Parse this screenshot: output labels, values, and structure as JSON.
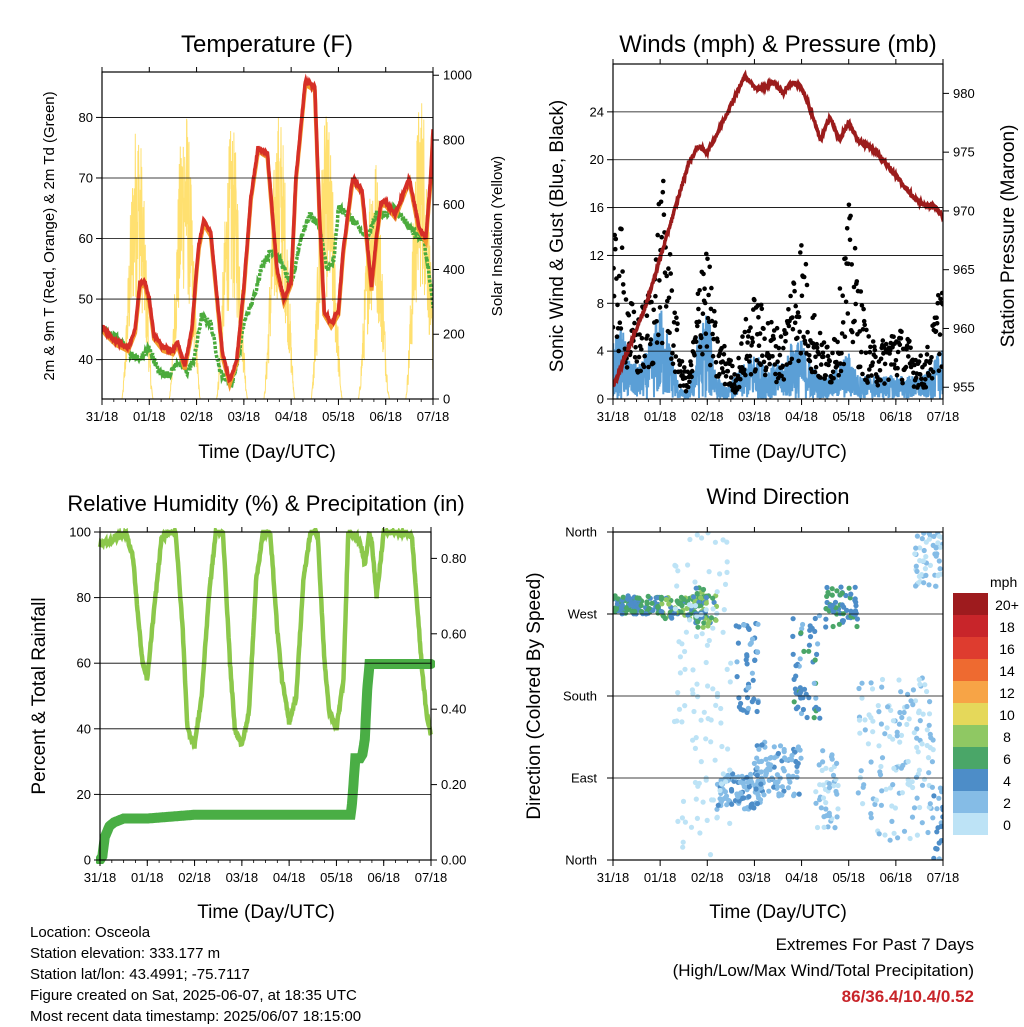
{
  "info": {
    "location": "Location: Osceola",
    "elevation": "Station elevation: 333.177 m",
    "latlon": "Station lat/lon: 43.4991; -75.7117",
    "created": "Figure created on Sat, 2025-06-07, at 18:35 UTC",
    "recent": "Most recent data timestamp: 2025/06/07 18:15:00"
  },
  "extremes": {
    "title": "Extremes For Past 7 Days",
    "subtitle": "(High/Low/Max Wind/Total Precipitation)",
    "values": "86/36.4/10.4/0.52"
  },
  "colors": {
    "temp2m": "#d62f27",
    "temp9m": "#f39a2c",
    "dewpoint": "#4bab3c",
    "solar": "#ffe070",
    "gust": "#000000",
    "wind": "#5b9fd6",
    "pressure": "#9b1c1c",
    "rh": "#8cc84b",
    "precip": "#4aae45"
  },
  "chart_data": [
    {
      "type": "line",
      "title": "Temperature (F)",
      "xlabel": "Time (Day/UTC)",
      "ylabel": "2m & 9m T (Red, Orange) & 2m Td (Green)",
      "y2label": "Solar Insolation (Yellow)",
      "x_ticks": [
        "31/18",
        "01/18",
        "02/18",
        "03/18",
        "04/18",
        "05/18",
        "06/18",
        "07/18"
      ],
      "xlim": [
        0,
        7
      ],
      "ylim": [
        33.5,
        87.5
      ],
      "y_ticks": [
        40,
        50,
        60,
        70,
        80
      ],
      "y2lim": [
        0,
        1010
      ],
      "y2_ticks": [
        0,
        200,
        400,
        600,
        800,
        1000
      ],
      "grid": true,
      "series": [
        {
          "key": "temp2m",
          "x": [
            0,
            0.1,
            0.3,
            0.55,
            0.7,
            0.8,
            0.9,
            1.0,
            1.1,
            1.3,
            1.5,
            1.6,
            1.75,
            1.9,
            2.0,
            2.05,
            2.15,
            2.3,
            2.55,
            2.7,
            2.85,
            3.0,
            3.15,
            3.3,
            3.5,
            3.7,
            3.85,
            4.0,
            4.1,
            4.3,
            4.5,
            4.6,
            4.7,
            4.85,
            5.0,
            5.1,
            5.3,
            5.5,
            5.6,
            5.7,
            5.8,
            5.9,
            6.0,
            6.2,
            6.4,
            6.5,
            6.7,
            6.85,
            6.95,
            7.0
          ],
          "y": [
            45.5,
            44.5,
            43,
            42,
            45,
            52.5,
            53,
            50,
            44,
            42,
            41.5,
            43,
            39,
            45,
            55,
            59,
            63,
            61,
            41,
            36.5,
            40,
            52,
            67,
            75,
            74,
            55,
            50,
            53,
            70,
            86,
            85,
            64,
            48,
            46,
            48,
            58,
            70,
            68,
            60,
            52,
            60,
            66,
            66,
            64,
            68,
            70,
            62,
            60,
            70,
            78
          ]
        },
        {
          "key": "dewpoint",
          "x": [
            0,
            0.2,
            0.4,
            0.6,
            0.8,
            1.0,
            1.2,
            1.4,
            1.6,
            1.8,
            1.95,
            2.1,
            2.3,
            2.5,
            2.6,
            2.75,
            2.9,
            3.0,
            3.2,
            3.4,
            3.6,
            3.8,
            4.0,
            4.2,
            4.4,
            4.6,
            4.75,
            4.9,
            5.0,
            5.2,
            5.4,
            5.6,
            5.8,
            6.0,
            6.2,
            6.4,
            6.6,
            6.8,
            6.9,
            7.0
          ],
          "y": [
            45,
            44,
            43,
            41,
            40,
            42,
            38,
            37.5,
            39.5,
            38,
            40,
            47,
            46,
            38,
            37,
            36,
            41,
            46,
            50,
            56,
            58,
            56,
            52,
            60,
            64,
            62,
            55,
            56,
            65,
            64,
            62,
            60,
            64,
            64,
            65,
            63,
            61,
            60,
            55,
            49
          ]
        }
      ],
      "solar": {
        "day_centers": [
          0.75,
          1.75,
          2.75,
          3.75,
          4.75,
          5.75,
          6.75
        ],
        "peaks": [
          880,
          930,
          850,
          900,
          880,
          780,
          960
        ]
      }
    },
    {
      "type": "scatter",
      "title": "Winds (mph) & Pressure (mb)",
      "xlabel": "Time (Day/UTC)",
      "ylabel": "Sonic Wind & Gust (Blue, Black)",
      "y2label": "Station Pressure (Maroon)",
      "x_ticks": [
        "31/18",
        "01/18",
        "02/18",
        "03/18",
        "04/18",
        "05/18",
        "06/18",
        "07/18"
      ],
      "xlim": [
        0,
        7
      ],
      "ylim": [
        0,
        28
      ],
      "y_ticks": [
        0,
        4,
        8,
        12,
        16,
        20,
        24
      ],
      "y2lim": [
        954,
        982.5
      ],
      "y2_ticks": [
        955,
        960,
        965,
        970,
        975,
        980
      ],
      "grid": true,
      "gust_envelope": {
        "x": [
          0,
          0.15,
          0.3,
          0.5,
          0.7,
          0.9,
          1.0,
          1.1,
          1.3,
          1.45,
          1.6,
          1.75,
          1.9,
          2.0,
          2.2,
          2.4,
          2.6,
          2.8,
          3.0,
          3.2,
          3.4,
          3.6,
          3.8,
          4.0,
          4.2,
          4.4,
          4.6,
          4.8,
          5.0,
          5.2,
          5.4,
          5.6,
          5.8,
          6.0,
          6.2,
          6.4,
          6.6,
          6.8,
          7.0
        ],
        "y": [
          12,
          14,
          9,
          6,
          8,
          11,
          18,
          16,
          8,
          3,
          2,
          6,
          14,
          12,
          5,
          4,
          2,
          6,
          8,
          7,
          6,
          5,
          10,
          13,
          8,
          5,
          4,
          8,
          15,
          10,
          5,
          4,
          5,
          6,
          5,
          4,
          3,
          6,
          11
        ]
      },
      "wind_envelope": {
        "x": [
          0,
          0.2,
          0.4,
          0.6,
          0.8,
          1.0,
          1.2,
          1.4,
          1.6,
          1.8,
          2.0,
          2.2,
          2.4,
          2.6,
          2.8,
          3.0,
          3.2,
          3.4,
          3.6,
          3.8,
          4.0,
          4.2,
          4.4,
          4.6,
          4.8,
          5.0,
          5.2,
          5.4,
          5.6,
          5.8,
          6.0,
          6.2,
          6.4,
          6.6,
          6.8,
          7.0
        ],
        "y": [
          5,
          6,
          3,
          3,
          5,
          8,
          5,
          1,
          0.5,
          5,
          8,
          2,
          1,
          2,
          3,
          4,
          3,
          3,
          3,
          5,
          5,
          3,
          2,
          2,
          3,
          4,
          2,
          2,
          2,
          2,
          2,
          2,
          2,
          2,
          3,
          5
        ]
      },
      "pressure": {
        "x": [
          0,
          0.3,
          0.7,
          1.0,
          1.3,
          1.6,
          1.8,
          2.0,
          2.2,
          2.5,
          2.8,
          3.0,
          3.2,
          3.4,
          3.6,
          3.8,
          4.0,
          4.2,
          4.4,
          4.6,
          4.8,
          5.0,
          5.2,
          5.4,
          5.6,
          5.8,
          6.0,
          6.2,
          6.4,
          6.6,
          6.8,
          7.0
        ],
        "y": [
          955,
          958,
          962,
          966,
          970,
          974,
          975.5,
          975,
          976.5,
          979,
          981.5,
          980.5,
          980.5,
          981,
          980,
          981,
          980.5,
          978.5,
          976,
          978,
          976,
          977.5,
          976,
          975.5,
          975,
          974,
          973,
          972,
          971,
          970.5,
          970.5,
          969.5
        ]
      }
    },
    {
      "type": "line",
      "title": "Relative Humidity (%) & Precipitation (in)",
      "xlabel": "Time (Day/UTC)",
      "ylabel": "Percent & Total Rainfall",
      "x_ticks": [
        "31/18",
        "01/18",
        "02/18",
        "03/18",
        "04/18",
        "05/18",
        "06/18",
        "07/18"
      ],
      "xlim": [
        0,
        7
      ],
      "ylim": [
        0,
        100
      ],
      "y_ticks": [
        0,
        20,
        40,
        60,
        80,
        100
      ],
      "y2lim": [
        0,
        0.87
      ],
      "y2_ticks": [
        "0.00",
        "0.20",
        "0.40",
        "0.60",
        "0.80"
      ],
      "grid": true,
      "series": [
        {
          "key": "rh",
          "name": "",
          "x": [
            0,
            0.2,
            0.4,
            0.55,
            0.7,
            0.8,
            0.9,
            1.0,
            1.1,
            1.3,
            1.5,
            1.6,
            1.75,
            1.85,
            2.0,
            2.15,
            2.3,
            2.45,
            2.6,
            2.75,
            2.85,
            3.0,
            3.15,
            3.3,
            3.45,
            3.6,
            3.75,
            3.85,
            4.0,
            4.15,
            4.3,
            4.45,
            4.6,
            4.75,
            4.85,
            5.0,
            5.15,
            5.25,
            5.4,
            5.5,
            5.6,
            5.7,
            5.75,
            5.85,
            6.0,
            6.2,
            6.4,
            6.5,
            6.6,
            6.8,
            6.9,
            7.0
          ],
          "y": [
            96,
            97,
            99,
            100,
            92,
            75,
            60,
            55,
            70,
            98,
            100,
            100,
            70,
            40,
            35,
            50,
            80,
            100,
            100,
            60,
            40,
            35,
            45,
            85,
            100,
            100,
            70,
            55,
            42,
            50,
            85,
            100,
            100,
            60,
            45,
            40,
            55,
            100,
            99,
            97,
            90,
            100,
            97,
            80,
            100,
            100,
            100,
            100,
            98,
            60,
            45,
            38
          ]
        },
        {
          "key": "precip",
          "name": "",
          "x": [
            0,
            0.05,
            0.1,
            0.2,
            0.3,
            0.5,
            1.0,
            1.5,
            2.0,
            3.0,
            4.0,
            5.0,
            5.3,
            5.33,
            5.4,
            5.5,
            5.55,
            5.6,
            5.65,
            5.7,
            6.0,
            6.5,
            7.0
          ],
          "y": [
            0,
            0.01,
            0.06,
            0.09,
            0.1,
            0.11,
            0.11,
            0.115,
            0.12,
            0.12,
            0.12,
            0.12,
            0.12,
            0.15,
            0.27,
            0.27,
            0.28,
            0.32,
            0.45,
            0.52,
            0.52,
            0.52,
            0.52
          ]
        }
      ]
    },
    {
      "type": "scatter",
      "title": "Wind Direction",
      "xlabel": "Time (Day/UTC)",
      "ylabel": "Direction (Colored By Speed)",
      "x_ticks": [
        "31/18",
        "01/18",
        "02/18",
        "03/18",
        "04/18",
        "05/18",
        "06/18",
        "07/18"
      ],
      "xlim": [
        0,
        7
      ],
      "y_ticks": [
        "North",
        "West",
        "South",
        "East",
        "North"
      ],
      "ylim": [
        0,
        360
      ],
      "grid": true,
      "legend": {
        "title": "mph",
        "labels": [
          "20+",
          "18",
          "16",
          "14",
          "12",
          "10",
          "8",
          "6",
          "4",
          "2",
          "0"
        ],
        "colors": [
          "#9e1b1e",
          "#c8252a",
          "#de3c2f",
          "#ee6a30",
          "#f7a446",
          "#e5d85a",
          "#8fc863",
          "#4aa668",
          "#4d8dc8",
          "#85bce6",
          "#bde3f6"
        ]
      },
      "clusters": [
        {
          "x": [
            0,
            1
          ],
          "dir": [
            270,
            290
          ],
          "speed": [
            3,
            7
          ]
        },
        {
          "x": [
            1,
            2
          ],
          "dir": [
            265,
            290
          ],
          "speed": [
            4,
            9
          ]
        },
        {
          "x": [
            1.75,
            2.2
          ],
          "dir": [
            255,
            300
          ],
          "speed": [
            3,
            8
          ]
        },
        {
          "x": [
            2.6,
            3.1
          ],
          "dir": [
            160,
            260
          ],
          "speed": [
            2,
            5
          ]
        },
        {
          "x": [
            2.2,
            3.2
          ],
          "dir": [
            55,
            95
          ],
          "speed": [
            1,
            4
          ]
        },
        {
          "x": [
            3.0,
            4.0
          ],
          "dir": [
            70,
            130
          ],
          "speed": [
            1,
            4
          ]
        },
        {
          "x": [
            3.8,
            4.4
          ],
          "dir": [
            150,
            270
          ],
          "speed": [
            2,
            6
          ]
        },
        {
          "x": [
            4.5,
            5.2
          ],
          "dir": [
            255,
            300
          ],
          "speed": [
            3,
            7
          ]
        },
        {
          "x": [
            4.3,
            4.8
          ],
          "dir": [
            30,
            120
          ],
          "speed": [
            0,
            3
          ]
        },
        {
          "x": [
            5.2,
            6.8
          ],
          "dir": [
            20,
            200
          ],
          "speed": [
            0,
            2
          ]
        },
        {
          "x": [
            6.4,
            7.0
          ],
          "dir": [
            300,
            360
          ],
          "speed": [
            0,
            3
          ]
        },
        {
          "x": [
            1.3,
            2.5
          ],
          "dir": [
            0,
            360
          ],
          "speed": [
            0,
            1
          ]
        },
        {
          "x": [
            6.8,
            7.0
          ],
          "dir": [
            0,
            80
          ],
          "speed": [
            2,
            5
          ]
        }
      ]
    }
  ]
}
